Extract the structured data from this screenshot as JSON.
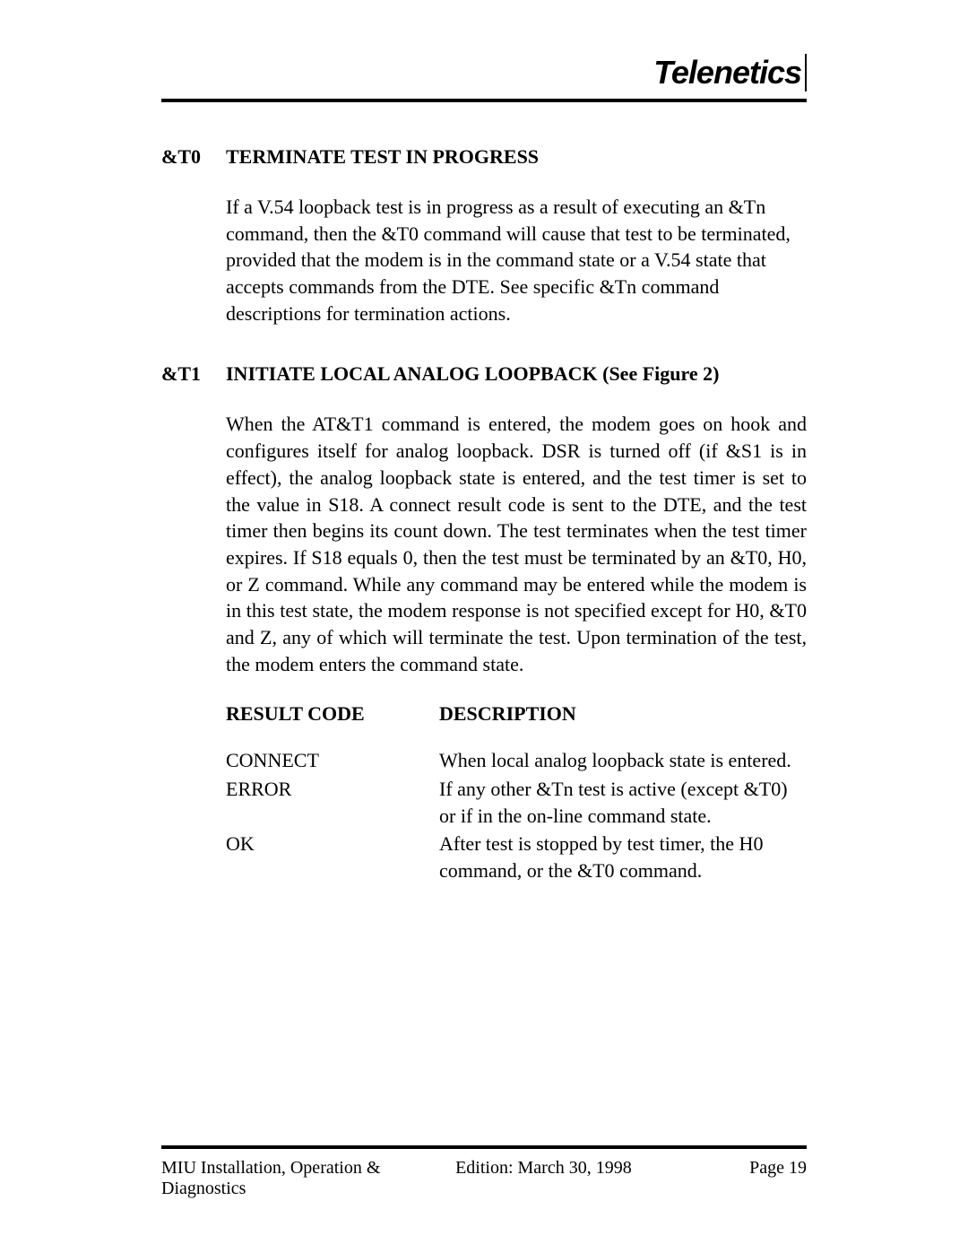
{
  "logo_text": "Telenetics",
  "sections": [
    {
      "code": "&T0",
      "title": "TERMINATE TEST IN PROGRESS",
      "body": "If a V.54 loopback test is in progress as a result of executing an &Tn command, then the &T0 command will cause that test to be terminated, provided that the modem is in the command state or a V.54 state that accepts commands from the DTE.  See specific &Tn command descriptions for termination actions.",
      "justified": false
    },
    {
      "code": "&T1",
      "title": "INITIATE LOCAL ANALOG LOOPBACK (See Figure 2)",
      "body": "When the AT&T1 command is entered, the modem goes on hook and configures itself for analog loopback.  DSR is turned off (if &S1 is in effect), the analog loopback state is entered, and the test timer is set to the value in S18.  A connect result code is sent to the DTE, and the test timer then begins its count down.  The test terminates when the test timer expires.  If S18 equals 0, then the test must be terminated by an &T0, H0, or Z command.  While any command may be entered while the modem is in this test state, the modem response is not specified except for H0, &T0 and Z, any of which will terminate the test.  Upon termination of the test, the modem enters the command state.",
      "justified": true
    }
  ],
  "table": {
    "header_code": "RESULT CODE",
    "header_desc": "DESCRIPTION",
    "rows": [
      {
        "code": "CONNECT",
        "desc": "When local analog loopback state is entered."
      },
      {
        "code": "ERROR",
        "desc": "If any other &Tn test is active (except &T0) or if in the on-line command state."
      },
      {
        "code": "OK",
        "desc": "After test is stopped by test timer, the H0 command, or the &T0 command."
      }
    ]
  },
  "footer": {
    "left": "MIU Installation, Operation & Diagnostics",
    "mid": "Edition:  March 30, 1998",
    "right": "Page 19"
  }
}
